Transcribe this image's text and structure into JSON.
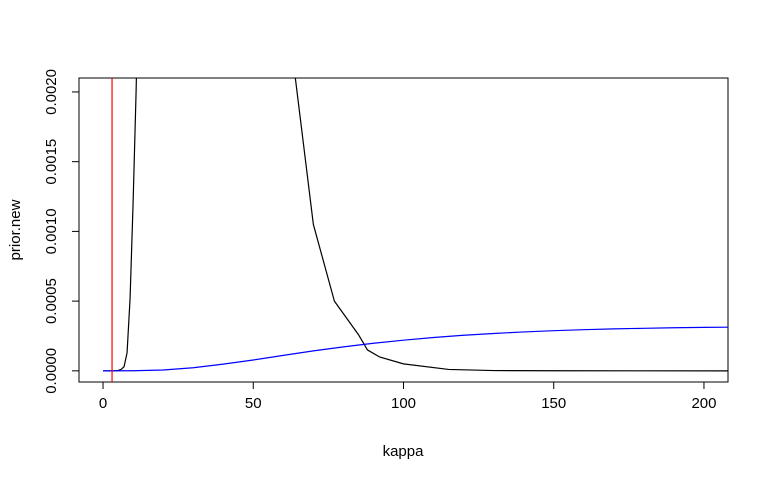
{
  "chart_data": {
    "type": "line",
    "title": "",
    "xlabel": "kappa",
    "ylabel": "prior.new",
    "xlim": [
      -8,
      208
    ],
    "ylim": [
      -8e-05,
      0.0021
    ],
    "x_ticks": [
      0,
      50,
      100,
      150,
      200
    ],
    "x_tick_labels": [
      "0",
      "50",
      "100",
      "150",
      "200"
    ],
    "y_ticks": [
      0.0,
      0.0005,
      0.001,
      0.0015,
      0.002
    ],
    "y_tick_labels": [
      "0.0000",
      "0.0005",
      "0.0010",
      "0.0015",
      "0.0020"
    ],
    "grid": false,
    "legend": "none",
    "vline": {
      "x": 3,
      "color": "#ff0000"
    },
    "series": [
      {
        "color": "#000000",
        "x": [
          0,
          2,
          4,
          5,
          6,
          7,
          8,
          9,
          10,
          11,
          12,
          64,
          70,
          77,
          85,
          88,
          92,
          100,
          115,
          130,
          150,
          175,
          208
        ],
        "y": [
          0,
          0,
          5e-07,
          3e-06,
          1e-05,
          3e-05,
          0.00013,
          0.00052,
          0.0012,
          0.002,
          0.003,
          0.0021,
          0.00105,
          0.0005,
          0.00026,
          0.00015,
          0.0001,
          5e-05,
          1e-05,
          2e-06,
          5e-07,
          1e-07,
          0
        ]
      },
      {
        "color": "#0000ff",
        "x": [
          0,
          10,
          20,
          30,
          40,
          50,
          60,
          70,
          80,
          90,
          100,
          110,
          120,
          130,
          140,
          150,
          160,
          170,
          180,
          190,
          200,
          208
        ],
        "y": [
          0,
          5e-07,
          6e-06,
          2.2e-05,
          4.8e-05,
          7.8e-05,
          0.000111,
          0.000143,
          0.000172,
          0.000198,
          0.00022,
          0.000239,
          0.000255,
          0.000268,
          0.000279,
          0.000288,
          0.000295,
          0.000301,
          0.000305,
          0.000309,
          0.000312,
          0.000313
        ]
      }
    ]
  }
}
